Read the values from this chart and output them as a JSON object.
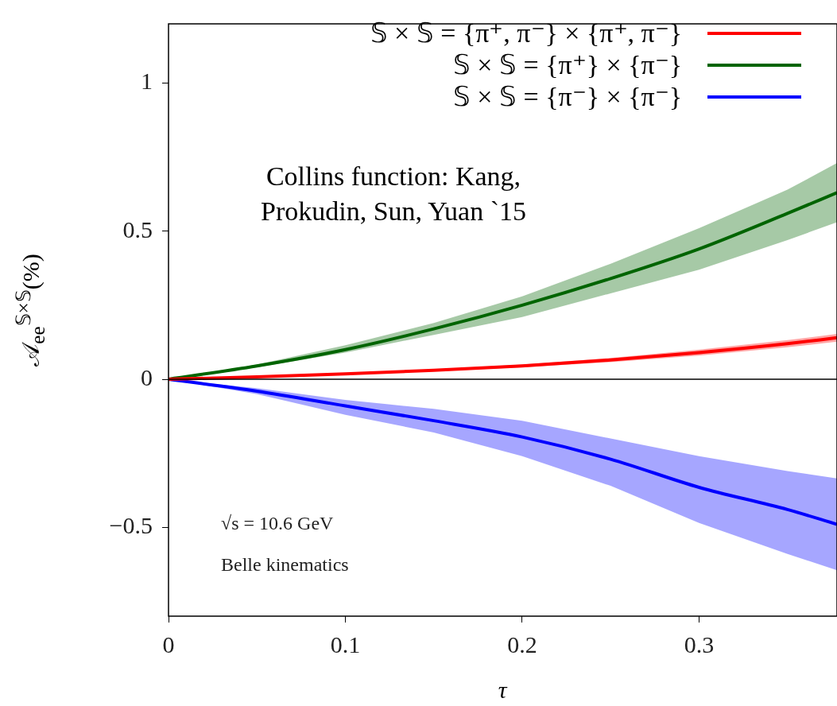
{
  "chart_data": {
    "type": "line",
    "xlabel": "τ",
    "ylabel": "𝒜$_{ee}$$^{𝕊×𝕊}$(%)",
    "x": [
      0,
      0.05,
      0.1,
      0.15,
      0.2,
      0.25,
      0.3,
      0.35,
      0.378
    ],
    "series": [
      {
        "name": "𝕊 × 𝕊 = {π⁺, π⁻} × {π⁺, π⁻}",
        "color": "#ff0000",
        "values": [
          0,
          0.008,
          0.018,
          0.03,
          0.045,
          0.065,
          0.09,
          0.12,
          0.14
        ],
        "lower": [
          0,
          0.007,
          0.016,
          0.027,
          0.04,
          0.058,
          0.08,
          0.108,
          0.127
        ],
        "upper": [
          0,
          0.009,
          0.02,
          0.033,
          0.05,
          0.072,
          0.1,
          0.132,
          0.153
        ]
      },
      {
        "name": "𝕊 × 𝕊 = {π⁺} × {π⁻}",
        "color": "#006400",
        "values": [
          0,
          0.045,
          0.1,
          0.17,
          0.25,
          0.34,
          0.44,
          0.56,
          0.63
        ],
        "lower": [
          0,
          0.04,
          0.09,
          0.15,
          0.21,
          0.29,
          0.37,
          0.47,
          0.53
        ],
        "upper": [
          0,
          0.05,
          0.115,
          0.19,
          0.28,
          0.39,
          0.51,
          0.64,
          0.73
        ]
      },
      {
        "name": "𝕊 × 𝕊 = {π⁻} × {π⁻}",
        "color": "#0000ff",
        "values": [
          0,
          -0.04,
          -0.09,
          -0.14,
          -0.195,
          -0.27,
          -0.365,
          -0.44,
          -0.49
        ],
        "lower": [
          0,
          -0.05,
          -0.12,
          -0.18,
          -0.26,
          -0.36,
          -0.485,
          -0.59,
          -0.645
        ],
        "upper": [
          0,
          -0.03,
          -0.07,
          -0.1,
          -0.14,
          -0.2,
          -0.26,
          -0.31,
          -0.335
        ]
      }
    ],
    "xlim": [
      0,
      0.378
    ],
    "xticks": [
      0,
      0.1,
      0.2,
      0.3
    ],
    "ylim": [
      -0.8,
      1.2
    ],
    "yticks": [
      {
        "value": -0.5,
        "label": "−0.5"
      },
      0,
      0.5,
      1
    ],
    "ref_lines": [
      {
        "axis": "y",
        "value": 0
      }
    ],
    "annotations": [
      "Collins function: Kang, Prokudin, Sun, Yuan `15",
      "√s = 10.6 GeV",
      "Belle kinematics"
    ],
    "grid": false,
    "legend": "top right",
    "marker": "none",
    "line_style": "solid"
  }
}
